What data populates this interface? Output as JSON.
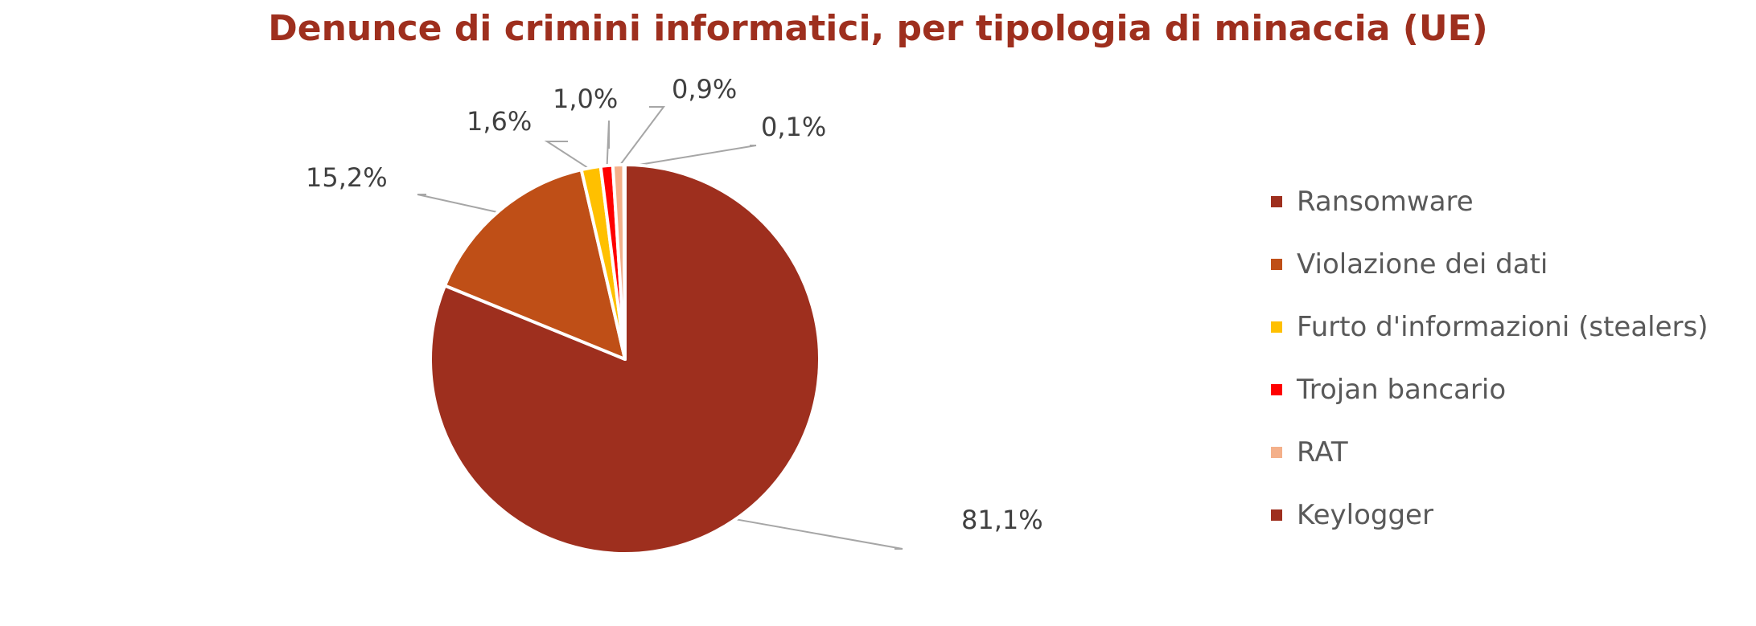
{
  "chart_data": {
    "type": "pie",
    "title": "Denunce di crimini informatici, per tipologia di minaccia (UE)",
    "slices": [
      {
        "label": "Ransomware",
        "value": 81.1,
        "value_label": "81,1%",
        "color": "#9e2f1e"
      },
      {
        "label": "Violazione dei dati",
        "value": 15.2,
        "value_label": "15,2%",
        "color": "#bf4f17"
      },
      {
        "label": "Furto d'informazioni (stealers)",
        "value": 1.6,
        "value_label": "1,6%",
        "color": "#ffc000"
      },
      {
        "label": "Trojan bancario",
        "value": 1.0,
        "value_label": "1,0%",
        "color": "#ff0000"
      },
      {
        "label": "RAT",
        "value": 0.9,
        "value_label": "0,9%",
        "color": "#f4b08a"
      },
      {
        "label": "Keylogger",
        "value": 0.1,
        "value_label": "0,1%",
        "color": "#9e2f1e"
      }
    ],
    "legend": {
      "position": "right"
    }
  }
}
